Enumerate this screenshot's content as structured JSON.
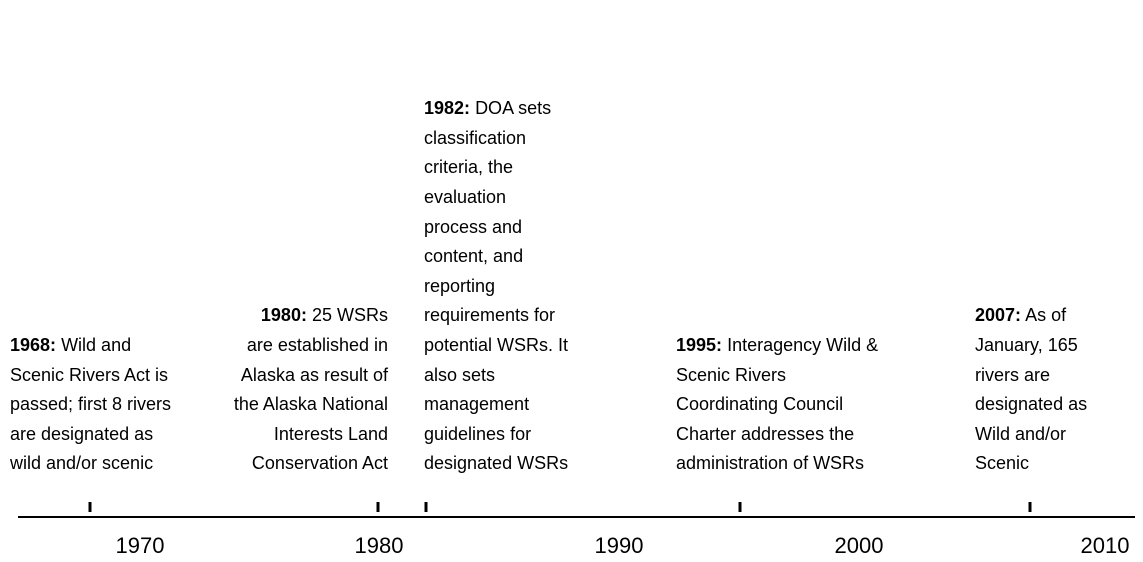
{
  "timeline": {
    "axis_labels": [
      "1970",
      "1980",
      "1990",
      "2000",
      "2010"
    ],
    "events": [
      {
        "year": "1968:",
        "text": "Wild and Scenic Rivers Act is passed; first 8 rivers are designated as wild and/or scenic"
      },
      {
        "year": "1980:",
        "text": "25 WSRs are established in Alaska as result of the Alaska National Interests Land Conservation Act"
      },
      {
        "year": "1982:",
        "text": "DOA sets classification criteria, the evaluation process and content, and reporting requirements for potential WSRs. It also sets management guidelines for designated WSRs"
      },
      {
        "year": "1995:",
        "text": "Interagency Wild & Scenic Rivers Coordinating Council Charter addresses the administration of WSRs"
      },
      {
        "year": "2007:",
        "text": "As of January, 165 rivers are designated as Wild and/or Scenic"
      }
    ]
  }
}
